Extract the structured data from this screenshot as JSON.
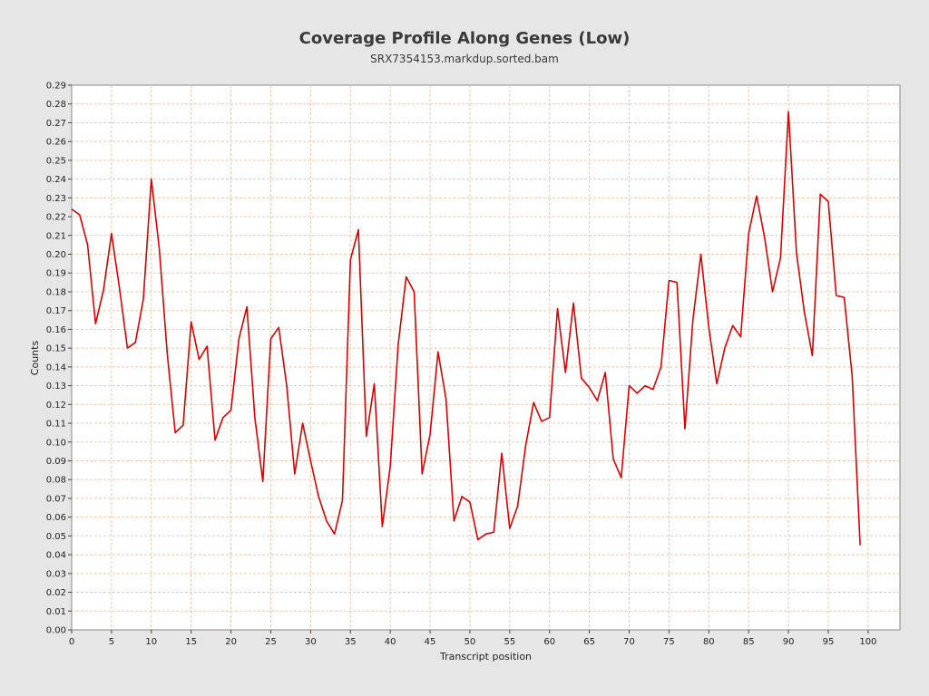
{
  "chart_data": {
    "type": "line",
    "title": "Coverage Profile Along Genes (Low)",
    "subtitle": "SRX7354153.markdup.sorted.bam",
    "xlabel": "Transcript position",
    "ylabel": "Counts",
    "xlim": [
      0,
      104
    ],
    "ylim": [
      0,
      0.29
    ],
    "x_ticks": [
      "0",
      "5",
      "10",
      "15",
      "20",
      "25",
      "30",
      "35",
      "40",
      "45",
      "50",
      "55",
      "60",
      "65",
      "70",
      "75",
      "80",
      "85",
      "90",
      "95",
      "100"
    ],
    "y_ticks": [
      "0.00",
      "0.01",
      "0.02",
      "0.03",
      "0.04",
      "0.05",
      "0.06",
      "0.07",
      "0.08",
      "0.09",
      "0.10",
      "0.11",
      "0.12",
      "0.13",
      "0.14",
      "0.15",
      "0.16",
      "0.17",
      "0.18",
      "0.19",
      "0.20",
      "0.21",
      "0.22",
      "0.23",
      "0.24",
      "0.25",
      "0.26",
      "0.27",
      "0.28",
      "0.29"
    ],
    "grid": true,
    "series": [
      {
        "color": "#dd0000",
        "x": [
          0,
          1,
          2,
          3,
          4,
          5,
          6,
          7,
          8,
          9,
          10,
          11,
          12,
          13,
          14,
          15,
          16,
          17,
          18,
          19,
          20,
          21,
          22,
          23,
          24,
          25,
          26,
          27,
          28,
          29,
          30,
          31,
          32,
          33,
          34,
          35,
          36,
          37,
          38,
          39,
          40,
          41,
          42,
          43,
          44,
          45,
          46,
          47,
          48,
          49,
          50,
          51,
          52,
          53,
          54,
          55,
          56,
          57,
          58,
          59,
          60,
          61,
          62,
          63,
          64,
          65,
          66,
          67,
          68,
          69,
          70,
          71,
          72,
          73,
          74,
          75,
          76,
          77,
          78,
          79,
          80,
          81,
          82,
          83,
          84,
          85,
          86,
          87,
          88,
          89,
          90,
          91,
          92,
          93,
          94,
          95,
          96,
          97,
          98,
          99
        ],
        "values": [
          0.224,
          0.221,
          0.205,
          0.163,
          0.181,
          0.211,
          0.182,
          0.15,
          0.153,
          0.176,
          0.24,
          0.203,
          0.147,
          0.105,
          0.109,
          0.164,
          0.144,
          0.151,
          0.101,
          0.113,
          0.117,
          0.155,
          0.172,
          0.113,
          0.079,
          0.155,
          0.161,
          0.13,
          0.083,
          0.11,
          0.09,
          0.071,
          0.058,
          0.051,
          0.069,
          0.197,
          0.213,
          0.103,
          0.131,
          0.055,
          0.087,
          0.152,
          0.188,
          0.18,
          0.083,
          0.104,
          0.148,
          0.123,
          0.058,
          0.071,
          0.068,
          0.048,
          0.051,
          0.052,
          0.094,
          0.054,
          0.066,
          0.098,
          0.121,
          0.111,
          0.113,
          0.171,
          0.137,
          0.174,
          0.134,
          0.129,
          0.122,
          0.137,
          0.091,
          0.081,
          0.13,
          0.126,
          0.13,
          0.128,
          0.14,
          0.186,
          0.185,
          0.107,
          0.165,
          0.2,
          0.161,
          0.131,
          0.15,
          0.162,
          0.156,
          0.211,
          0.231,
          0.209,
          0.18,
          0.198,
          0.276,
          0.201,
          0.169,
          0.146,
          0.232,
          0.228,
          0.178,
          0.177,
          0.135,
          0.045
        ]
      }
    ]
  }
}
